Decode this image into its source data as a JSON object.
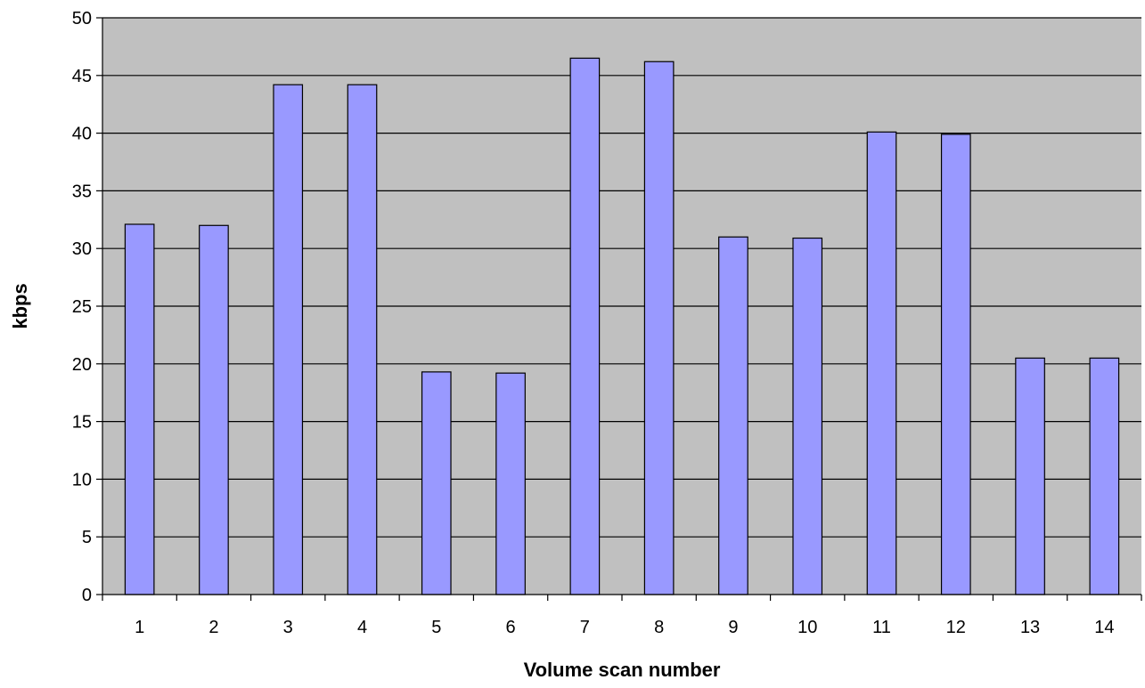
{
  "chart_data": {
    "type": "bar",
    "title": "",
    "xlabel": "Volume scan number",
    "ylabel": "kbps",
    "categories": [
      "1",
      "2",
      "3",
      "4",
      "5",
      "6",
      "7",
      "8",
      "9",
      "10",
      "11",
      "12",
      "13",
      "14"
    ],
    "values": [
      32.1,
      32.0,
      44.2,
      44.2,
      19.3,
      19.2,
      46.5,
      46.2,
      31.0,
      30.9,
      40.1,
      39.9,
      20.5,
      20.5
    ],
    "ylim": [
      0,
      50
    ],
    "yticks": [
      "0",
      "5",
      "10",
      "15",
      "20",
      "25",
      "30",
      "35",
      "40",
      "45",
      "50"
    ],
    "grid": true,
    "legend": "none",
    "colors": {
      "bar_fill": "#9999ff",
      "plot_background": "#c0c0c0",
      "gridline": "#000000",
      "bar_stroke": "#000000"
    }
  }
}
